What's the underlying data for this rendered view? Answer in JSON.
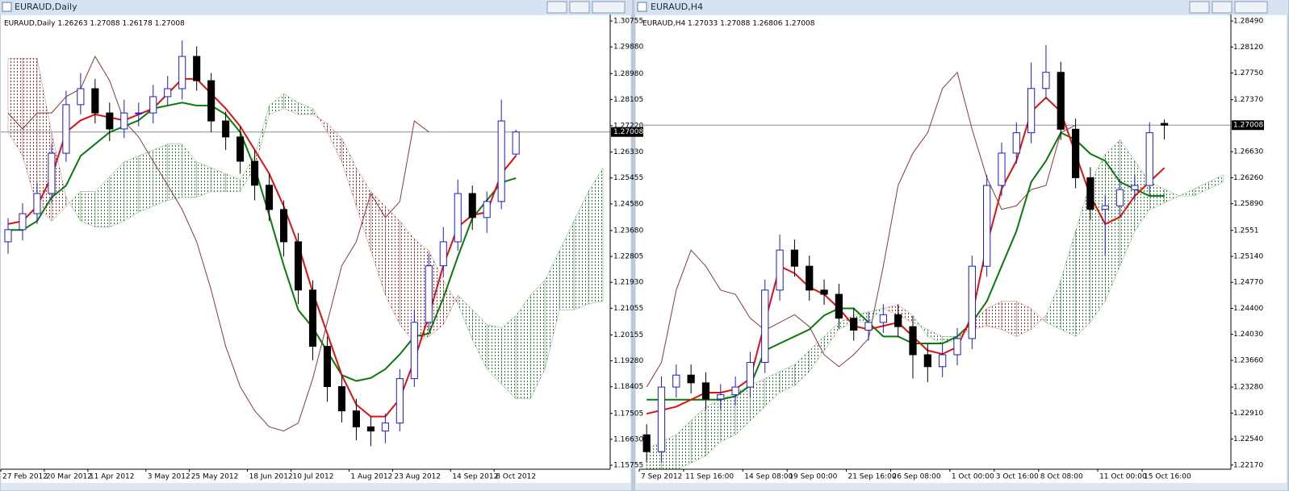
{
  "chart_data": [
    {
      "type": "candlestick",
      "title": "EURAUD,Daily",
      "subtitle": "EURAUD,Daily  1.26263 1.27088 1.26178 1.27008",
      "categories": [
        "27 Feb 2012",
        null,
        null,
        "20 Mar 2012",
        null,
        null,
        "11 Apr 2012",
        null,
        null,
        null,
        "3 May 2012",
        null,
        null,
        "25 May 2012",
        null,
        null,
        null,
        "18 Jun 2012",
        null,
        null,
        "10 Jul 2012",
        null,
        null,
        null,
        "1 Aug 2012",
        null,
        null,
        "23 Aug 2012",
        null,
        null,
        null,
        "14 Sep 2012",
        null,
        null,
        "8 Oct 2012",
        null,
        null,
        null,
        null,
        null,
        null,
        null
      ],
      "open": [
        1.233,
        1.2371,
        1.2425,
        1.2493,
        1.2629,
        1.2793,
        1.2847,
        1.2765,
        1.2711,
        1.2765,
        1.2765,
        1.282,
        1.2847,
        1.2956,
        1.2874,
        1.2738,
        1.2684,
        1.2602,
        1.2521,
        1.2439,
        1.233,
        1.2167,
        1.1977,
        1.1841,
        1.1759,
        1.1705,
        1.1691,
        1.1718,
        1.1868,
        1.2058,
        1.2249,
        1.233,
        1.2493,
        1.2412,
        1.2466,
        1.26263,
        null,
        null,
        null,
        null,
        null,
        null
      ],
      "high": [
        1.241,
        1.246,
        1.253,
        1.266,
        1.284,
        1.29,
        1.288,
        1.28,
        1.281,
        1.28,
        1.286,
        1.289,
        1.301,
        1.299,
        1.29,
        1.277,
        1.272,
        1.264,
        1.256,
        1.247,
        1.236,
        1.22,
        1.201,
        1.188,
        1.18,
        1.174,
        1.175,
        1.19,
        1.21,
        1.229,
        1.238,
        1.254,
        1.252,
        1.25,
        1.281,
        1.27088,
        null,
        null,
        null,
        null,
        null,
        null
      ],
      "low": [
        1.229,
        1.2335,
        1.239,
        1.246,
        1.26,
        1.276,
        1.273,
        1.267,
        1.268,
        1.272,
        1.273,
        1.279,
        1.281,
        1.284,
        1.27,
        1.264,
        1.256,
        1.247,
        1.24,
        1.228,
        1.212,
        1.193,
        1.179,
        1.172,
        1.166,
        1.164,
        1.165,
        1.169,
        1.184,
        1.203,
        1.221,
        1.23,
        1.237,
        1.236,
        1.244,
        1.26178,
        null,
        null,
        null,
        null,
        null,
        null
      ],
      "close": [
        1.2371,
        1.2425,
        1.2493,
        1.2629,
        1.2793,
        1.2847,
        1.2765,
        1.2711,
        1.2765,
        1.2765,
        1.282,
        1.2847,
        1.2956,
        1.2874,
        1.2738,
        1.2684,
        1.2602,
        1.2521,
        1.2439,
        1.233,
        1.2167,
        1.1977,
        1.1841,
        1.1759,
        1.1705,
        1.1691,
        1.1718,
        1.1868,
        1.2058,
        1.2249,
        1.233,
        1.2493,
        1.2412,
        1.2466,
        1.2738,
        1.27008,
        null,
        null,
        null,
        null,
        null,
        null
      ],
      "up_color": "#1c1cc8",
      "down_color": "#000000",
      "lines": [
        {
          "color": "#8b3a3a",
          "width": 1,
          "values": [
            1.2765,
            1.2711,
            1.2765,
            1.2765,
            1.282,
            1.2847,
            1.2956,
            1.2874,
            1.2738,
            1.2684,
            1.2602,
            1.2521,
            1.2439,
            1.233,
            1.2167,
            1.1977,
            1.1841,
            1.1759,
            1.1705,
            1.1691,
            1.1718,
            1.1868,
            1.2058,
            1.2249,
            1.233,
            1.2493,
            1.2412,
            1.2466,
            1.2738,
            1.27008,
            null,
            null,
            null,
            null,
            null,
            null,
            null,
            null,
            null,
            null,
            null,
            null
          ]
        },
        {
          "color": "#0a7a0a",
          "width": 2,
          "values": [
            1.237,
            1.237,
            1.24,
            1.248,
            1.252,
            1.262,
            1.266,
            1.27,
            1.272,
            1.274,
            1.278,
            1.279,
            1.28,
            1.279,
            1.279,
            1.276,
            1.27,
            1.258,
            1.242,
            1.225,
            1.21,
            1.204,
            1.196,
            1.188,
            1.186,
            1.187,
            1.19,
            1.195,
            1.201,
            1.202,
            1.214,
            1.228,
            1.241,
            1.247,
            1.253,
            1.2545,
            null,
            null,
            null,
            null,
            null,
            null
          ]
        },
        {
          "color": "#e01010",
          "width": 2,
          "values": [
            1.239,
            1.24,
            1.245,
            1.255,
            1.27,
            1.274,
            1.276,
            1.275,
            1.274,
            1.276,
            1.278,
            1.283,
            1.288,
            1.288,
            1.283,
            1.278,
            1.272,
            1.264,
            1.256,
            1.245,
            1.232,
            1.216,
            1.202,
            1.188,
            1.178,
            1.174,
            1.174,
            1.18,
            1.193,
            1.208,
            1.225,
            1.238,
            1.242,
            1.243,
            1.256,
            1.262,
            null,
            null,
            null,
            null,
            null,
            null
          ]
        }
      ],
      "cloud": {
        "up_color": "#2e7d32",
        "down_color": "#a52a2a",
        "span_a": [
          1.27,
          1.262,
          1.245,
          1.24,
          1.245,
          1.25,
          1.25,
          1.255,
          1.26,
          1.262,
          1.264,
          1.266,
          1.266,
          1.26,
          1.258,
          1.256,
          1.254,
          1.262,
          1.279,
          1.283,
          1.28,
          1.278,
          1.27,
          1.26,
          1.245,
          1.23,
          1.215,
          1.205,
          1.199,
          1.201,
          1.205,
          1.215,
          1.21,
          1.205,
          1.204,
          1.208,
          1.215,
          1.22,
          1.23,
          1.24,
          1.25,
          1.258
        ],
        "span_b": [
          1.295,
          1.295,
          1.295,
          1.27,
          1.248,
          1.24,
          1.238,
          1.238,
          1.24,
          1.243,
          1.245,
          1.247,
          1.248,
          1.248,
          1.25,
          1.25,
          1.25,
          1.258,
          1.276,
          1.278,
          1.276,
          1.276,
          1.273,
          1.268,
          1.258,
          1.25,
          1.245,
          1.24,
          1.234,
          1.23,
          1.22,
          1.212,
          1.2,
          1.19,
          1.185,
          1.18,
          1.18,
          1.19,
          1.21,
          1.21,
          1.212,
          1.213
        ]
      },
      "last": 1.27008,
      "ylim": [
        1.1562,
        1.3092
      ],
      "yticks": [
        1.30755,
        {
          "value": 1.2988,
          "label": "1.29880"
        },
        {
          "value": 1.2898,
          "label": "1.28980"
        },
        1.28105,
        {
          "value": 1.2722,
          "label": "1.27220"
        },
        {
          "value": 1.2633,
          "label": "1.26330"
        },
        1.25455,
        {
          "value": 1.2458,
          "label": "1.24580"
        },
        {
          "value": 1.2368,
          "label": "1.23680"
        },
        1.22805,
        {
          "value": 1.2193,
          "label": "1.21930"
        },
        1.21055,
        1.20155,
        {
          "value": 1.1928,
          "label": "1.19280"
        },
        1.18405,
        1.17505,
        {
          "value": 1.1663,
          "label": "1.16630"
        },
        1.15755
      ],
      "grid": false
    },
    {
      "type": "candlestick",
      "title": "EURAUD,H4",
      "subtitle": "EURAUD,H4  1.27033 1.27088 1.26806 1.27008",
      "categories": [
        "7 Sep 2012",
        null,
        null,
        "11 Sep 16:00",
        null,
        null,
        null,
        "14 Sep 08:00",
        null,
        null,
        "19 Sep 00:00",
        null,
        null,
        null,
        "21 Sep 16:00",
        null,
        null,
        "26 Sep 08:00",
        null,
        null,
        null,
        "1 Oct 00:00",
        null,
        null,
        "3 Oct 16:00",
        null,
        null,
        "8 Oct 08:00",
        null,
        null,
        null,
        "11 Oct 00:00",
        null,
        null,
        "15 Oct 16:00",
        null,
        null,
        null,
        null,
        null
      ],
      "open": [
        1.226,
        1.2236,
        1.2328,
        1.2345,
        1.2334,
        1.2311,
        1.2317,
        1.2328,
        1.2363,
        1.2466,
        1.2523,
        1.25,
        1.2466,
        1.246,
        1.2426,
        1.2409,
        1.242,
        1.2431,
        1.2414,
        1.2374,
        1.2357,
        1.2374,
        1.2397,
        1.25,
        1.2615,
        1.2661,
        1.269,
        1.2753,
        1.2776,
        1.2695,
        1.2626,
        1.2581,
        1.2586,
        1.2609,
        1.2615,
        1.27033,
        null,
        null,
        null,
        null
      ],
      "high": [
        1.2275,
        1.2343,
        1.236,
        1.236,
        1.2349,
        1.2332,
        1.2343,
        1.2378,
        1.2481,
        1.2545,
        1.2538,
        1.2515,
        1.2481,
        1.2475,
        1.2441,
        1.2435,
        1.2446,
        1.2446,
        1.2429,
        1.2389,
        1.2389,
        1.2412,
        1.2515,
        1.263,
        1.2676,
        1.2705,
        1.279,
        1.2815,
        1.2791,
        1.271,
        1.2641,
        1.2601,
        1.2624,
        1.263,
        1.2705,
        1.27088,
        null,
        null,
        null,
        null
      ],
      "low": [
        1.2221,
        1.2221,
        1.2313,
        1.2319,
        1.2296,
        1.2296,
        1.2302,
        1.2313,
        1.2348,
        1.2451,
        1.2485,
        1.2451,
        1.2445,
        1.2411,
        1.2394,
        1.2394,
        1.2405,
        1.2399,
        1.234,
        1.2335,
        1.2342,
        1.2359,
        1.2382,
        1.2485,
        1.26,
        1.2646,
        1.2675,
        1.2738,
        1.268,
        1.2611,
        1.2566,
        1.2515,
        1.2571,
        1.2594,
        1.26,
        1.26806,
        null,
        null,
        null,
        null
      ],
      "close": [
        1.2236,
        1.2328,
        1.2345,
        1.2334,
        1.2311,
        1.2317,
        1.2328,
        1.2363,
        1.2466,
        1.2523,
        1.25,
        1.2466,
        1.246,
        1.2426,
        1.2409,
        1.242,
        1.2431,
        1.2414,
        1.2374,
        1.2357,
        1.2374,
        1.2397,
        1.25,
        1.2615,
        1.2661,
        1.269,
        1.2753,
        1.2776,
        1.2695,
        1.2626,
        1.2581,
        1.2586,
        1.2609,
        1.2615,
        1.269,
        1.27008,
        null,
        null,
        null,
        null
      ],
      "up_color": "#1c1cc8",
      "down_color": "#000000",
      "lines": [
        {
          "color": "#8b3a3a",
          "width": 1,
          "values": [
            1.2328,
            1.2363,
            1.2466,
            1.2523,
            1.25,
            1.2466,
            1.246,
            1.2426,
            1.2409,
            1.242,
            1.2431,
            1.2414,
            1.2374,
            1.2357,
            1.2374,
            1.2397,
            1.25,
            1.2615,
            1.2661,
            1.269,
            1.2753,
            1.2776,
            1.2695,
            1.2626,
            1.2581,
            1.2586,
            1.2609,
            1.2615,
            1.269,
            1.27008,
            null,
            null,
            null,
            null,
            null,
            null,
            null,
            null,
            null,
            null
          ]
        },
        {
          "color": "#0a7a0a",
          "width": 2,
          "values": [
            1.231,
            1.231,
            1.231,
            1.231,
            1.231,
            1.231,
            1.2315,
            1.233,
            1.238,
            1.239,
            1.24,
            1.241,
            1.243,
            1.244,
            1.244,
            1.242,
            1.24,
            1.24,
            1.239,
            1.239,
            1.239,
            1.24,
            1.242,
            1.245,
            1.25,
            1.255,
            1.262,
            1.265,
            1.269,
            1.268,
            1.266,
            1.265,
            1.262,
            1.261,
            1.26,
            1.26,
            null,
            null,
            null,
            null
          ]
        },
        {
          "color": "#e01010",
          "width": 2,
          "values": [
            1.229,
            1.2295,
            1.23,
            1.231,
            1.232,
            1.232,
            1.2325,
            1.234,
            1.242,
            1.25,
            1.249,
            1.247,
            1.246,
            1.244,
            1.2415,
            1.241,
            1.2415,
            1.242,
            1.24,
            1.238,
            1.2375,
            1.2385,
            1.243,
            1.253,
            1.261,
            1.265,
            1.272,
            1.274,
            1.272,
            1.266,
            1.26,
            1.256,
            1.257,
            1.26,
            1.262,
            1.264,
            null,
            null,
            null,
            null
          ]
        }
      ],
      "cloud": {
        "up_color": "#2e7d32",
        "down_color": "#a52a2a",
        "span_a": [
          1.224,
          1.225,
          1.226,
          1.228,
          1.23,
          1.231,
          1.232,
          1.233,
          1.234,
          1.235,
          1.236,
          1.238,
          1.24,
          1.242,
          1.243,
          1.2435,
          1.244,
          1.243,
          1.242,
          1.241,
          1.24,
          1.24,
          1.241,
          1.2415,
          1.241,
          1.24,
          1.241,
          1.243,
          1.248,
          1.255,
          1.262,
          1.266,
          1.268,
          1.265,
          1.262,
          1.261,
          1.26,
          1.261,
          1.262,
          1.263
        ],
        "span_b": [
          1.22,
          1.221,
          1.221,
          1.222,
          1.223,
          1.225,
          1.226,
          1.228,
          1.23,
          1.232,
          1.233,
          1.235,
          1.238,
          1.241,
          1.242,
          1.242,
          1.244,
          1.2445,
          1.243,
          1.24,
          1.239,
          1.2395,
          1.242,
          1.244,
          1.245,
          1.245,
          1.244,
          1.242,
          1.241,
          1.24,
          1.242,
          1.245,
          1.25,
          1.255,
          1.258,
          1.259,
          1.26,
          1.26,
          1.261,
          1.262
        ]
      },
      "last": 1.27008,
      "ylim": [
        1.2211,
        1.2856
      ],
      "yticks": [
        {
          "value": 1.2849,
          "label": "1.28490"
        },
        {
          "value": 1.2812,
          "label": "1.28120"
        },
        {
          "value": 1.2775,
          "label": "1.27750"
        },
        {
          "value": 1.2737,
          "label": "1.27370"
        },
        {
          "value": 1.2663,
          "label": "1.26630"
        },
        {
          "value": 1.2626,
          "label": "1.26260"
        },
        {
          "value": 1.2589,
          "label": "1.25890"
        },
        1.2551,
        {
          "value": 1.2514,
          "label": "1.25140"
        },
        {
          "value": 1.2477,
          "label": "1.24770"
        },
        {
          "value": 1.244,
          "label": "1.24400"
        },
        {
          "value": 1.2403,
          "label": "1.24030"
        },
        {
          "value": 1.2366,
          "label": "1.23660"
        },
        {
          "value": 1.2328,
          "label": "1.23280"
        },
        {
          "value": 1.2291,
          "label": "1.22910"
        },
        {
          "value": 1.2254,
          "label": "1.22540"
        },
        {
          "value": 1.2217,
          "label": "1.22170"
        }
      ],
      "grid": false
    }
  ]
}
